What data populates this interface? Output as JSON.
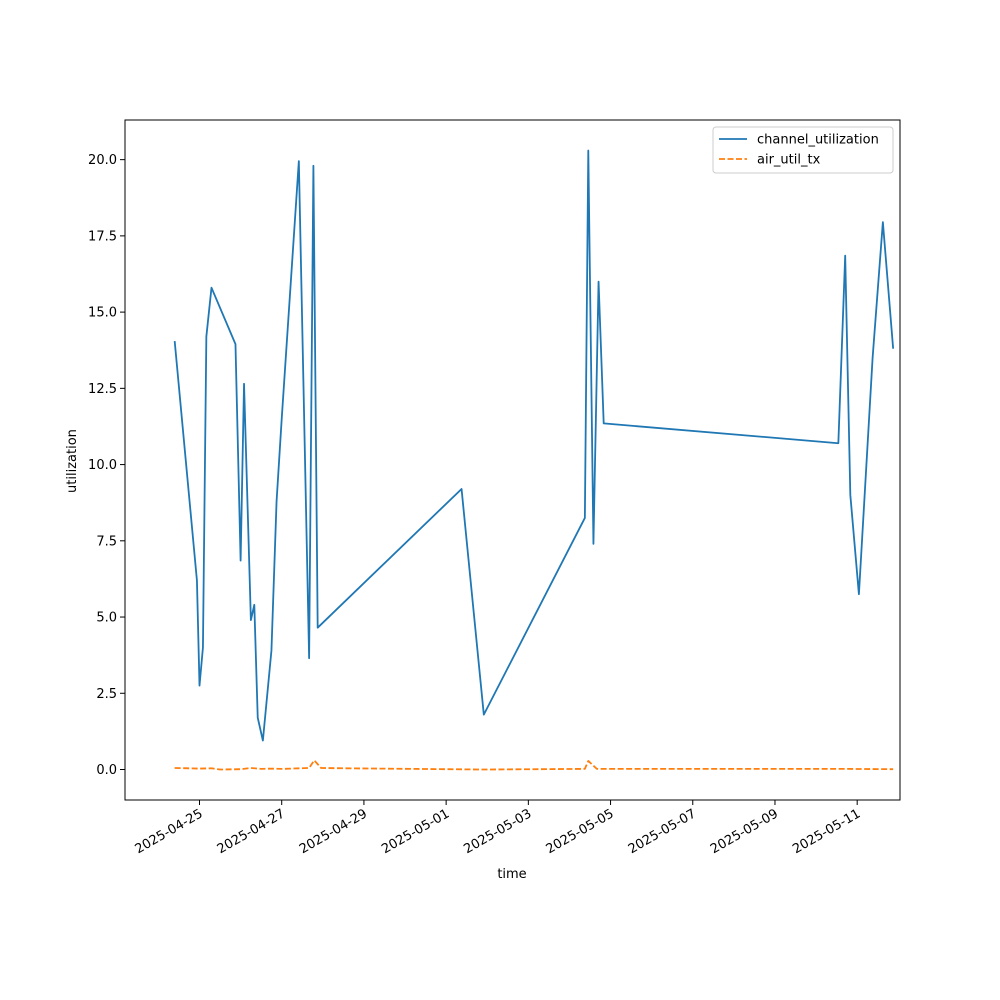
{
  "chart_data": {
    "type": "line",
    "title": "",
    "xlabel": "time",
    "ylabel": "utilization",
    "xlim": [
      "2025-04-23T04:30",
      "2025-05-12T01:00"
    ],
    "ylim": [
      -1.0,
      21.3
    ],
    "grid": false,
    "legend_position": "top-right",
    "x_ticks": [
      "2025-04-25",
      "2025-04-27",
      "2025-04-29",
      "2025-05-01",
      "2025-05-03",
      "2025-05-05",
      "2025-05-07",
      "2025-05-09",
      "2025-05-11"
    ],
    "y_ticks": [
      "0.0",
      "2.5",
      "5.0",
      "7.5",
      "10.0",
      "12.5",
      "15.0",
      "17.5",
      "20.0"
    ],
    "series": [
      {
        "name": "channel_utilization",
        "color": "#1f77b4",
        "style": "solid",
        "points": [
          [
            "2025-04-24T09:30",
            14.05
          ],
          [
            "2025-04-24T22:30",
            6.2
          ],
          [
            "2025-04-25T00:00",
            2.75
          ],
          [
            "2025-04-25T02:00",
            4.0
          ],
          [
            "2025-04-25T04:00",
            14.2
          ],
          [
            "2025-04-25T07:00",
            15.8
          ],
          [
            "2025-04-25T21:00",
            13.95
          ],
          [
            "2025-04-26T00:00",
            6.85
          ],
          [
            "2025-04-26T02:00",
            12.65
          ],
          [
            "2025-04-26T06:00",
            4.9
          ],
          [
            "2025-04-26T08:00",
            5.4
          ],
          [
            "2025-04-26T10:00",
            1.7
          ],
          [
            "2025-04-26T13:00",
            0.95
          ],
          [
            "2025-04-26T18:00",
            3.9
          ],
          [
            "2025-04-26T21:00",
            8.8
          ],
          [
            "2025-04-27T00:00",
            11.5
          ],
          [
            "2025-04-27T10:00",
            19.95
          ],
          [
            "2025-04-27T16:00",
            3.65
          ],
          [
            "2025-04-27T18:30",
            19.8
          ],
          [
            "2025-04-27T21:00",
            4.65
          ],
          [
            "2025-05-01T09:00",
            9.2
          ],
          [
            "2025-05-01T22:00",
            1.8
          ],
          [
            "2025-05-04T09:00",
            8.25
          ],
          [
            "2025-05-04T11:00",
            20.3
          ],
          [
            "2025-05-04T14:00",
            7.4
          ],
          [
            "2025-05-04T17:00",
            16.0
          ],
          [
            "2025-05-04T20:00",
            11.35
          ],
          [
            "2025-05-10T13:00",
            10.7
          ],
          [
            "2025-05-10T17:00",
            16.85
          ],
          [
            "2025-05-10T20:00",
            9.0
          ],
          [
            "2025-05-11T01:00",
            5.75
          ],
          [
            "2025-05-11T09:00",
            13.5
          ],
          [
            "2025-05-11T15:00",
            17.95
          ],
          [
            "2025-05-11T21:00",
            13.8
          ]
        ]
      },
      {
        "name": "air_util_tx",
        "color": "#ff7f0e",
        "style": "dashed",
        "points": [
          [
            "2025-04-24T09:30",
            0.05
          ],
          [
            "2025-04-25T00:00",
            0.03
          ],
          [
            "2025-04-25T07:00",
            0.04
          ],
          [
            "2025-04-25T12:00",
            0.0
          ],
          [
            "2025-04-26T00:00",
            0.01
          ],
          [
            "2025-04-26T06:00",
            0.05
          ],
          [
            "2025-04-26T12:00",
            0.02
          ],
          [
            "2025-04-26T18:00",
            0.03
          ],
          [
            "2025-04-27T00:00",
            0.02
          ],
          [
            "2025-04-27T16:00",
            0.05
          ],
          [
            "2025-04-27T19:00",
            0.3
          ],
          [
            "2025-04-27T23:00",
            0.05
          ],
          [
            "2025-04-28T12:00",
            0.04
          ],
          [
            "2025-05-01T22:00",
            0.0
          ],
          [
            "2025-05-04T09:00",
            0.02
          ],
          [
            "2025-05-04T11:00",
            0.28
          ],
          [
            "2025-05-04T16:00",
            0.02
          ],
          [
            "2025-05-10T17:00",
            0.02
          ],
          [
            "2025-05-11T21:00",
            0.01
          ]
        ]
      }
    ]
  }
}
